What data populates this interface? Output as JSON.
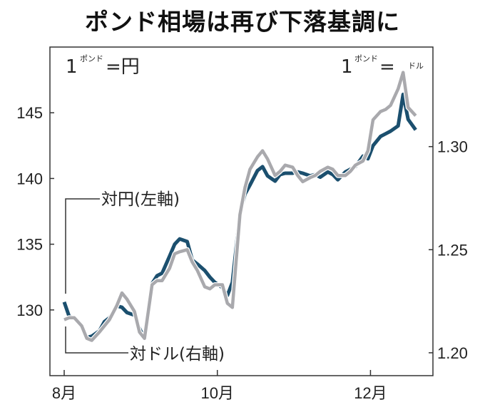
{
  "chart_data": {
    "type": "line",
    "title": "ポンド相場は再び下落基調に",
    "left_axis": {
      "unit_prefix": "1",
      "unit_small": "ポンド",
      "unit_suffix": "=円",
      "ylim": [
        125,
        150
      ],
      "ticks": [
        "130",
        "135",
        "140",
        "145"
      ]
    },
    "right_axis": {
      "unit_prefix": "1",
      "unit_small": "ポンド",
      "unit_suffix": "=",
      "unit_small2": "ドル",
      "ylim": [
        1.1889,
        1.3483
      ],
      "ticks": [
        "1.20",
        "1.25",
        "1.30"
      ]
    },
    "x_ticks": [
      {
        "date": "08-01",
        "label": "8月"
      },
      {
        "date": "10-01",
        "label": "10月"
      },
      {
        "date": "12-01",
        "label": "12月"
      }
    ],
    "grid": false,
    "colors": {
      "yen": "#1b4f6e",
      "dollar": "#a9a9ad"
    },
    "x": [
      "08-01",
      "08-03",
      "08-05",
      "08-08",
      "08-10",
      "08-12",
      "08-15",
      "08-17",
      "08-19",
      "08-22",
      "08-24",
      "08-26",
      "08-29",
      "08-31",
      "09-02",
      "09-05",
      "09-07",
      "09-09",
      "09-12",
      "09-14",
      "09-16",
      "09-19",
      "09-21",
      "09-23",
      "09-26",
      "09-28",
      "09-30",
      "10-03",
      "10-05",
      "10-07",
      "10-10",
      "10-12",
      "10-14",
      "10-17",
      "10-19",
      "10-21",
      "10-24",
      "10-26",
      "10-28",
      "10-31",
      "11-02",
      "11-04",
      "11-07",
      "11-09",
      "11-11",
      "11-14",
      "11-16",
      "11-18",
      "11-21",
      "11-23",
      "11-25",
      "11-28",
      "11-30",
      "12-02",
      "12-05",
      "12-07",
      "12-09",
      "12-12",
      "12-14",
      "12-16",
      "12-19"
    ],
    "series": [
      {
        "name": "対円(左軸)",
        "axis": "left",
        "values": [
          130.6,
          129.5,
          129.4,
          128.8,
          127.9,
          128.0,
          128.4,
          129.1,
          129.4,
          130.3,
          130.2,
          129.8,
          129.6,
          128.6,
          127.8,
          132.0,
          132.6,
          132.8,
          134.1,
          135.0,
          135.4,
          135.2,
          133.8,
          133.5,
          133.0,
          132.5,
          132.1,
          131.7,
          131.1,
          132.1,
          137.3,
          138.8,
          139.5,
          140.6,
          140.9,
          140.2,
          139.8,
          140.3,
          140.4,
          140.4,
          140.5,
          140.4,
          140.2,
          140.3,
          140.1,
          140.5,
          140.3,
          139.9,
          140.5,
          140.7,
          140.9,
          141.7,
          141.5,
          142.5,
          143.2,
          143.4,
          143.6,
          144.0,
          146.4,
          144.5,
          143.7
        ]
      },
      {
        "name": "対ドル(右軸)",
        "axis": "right",
        "values": [
          1.216,
          1.217,
          1.217,
          1.213,
          1.207,
          1.206,
          1.21,
          1.213,
          1.216,
          1.223,
          1.229,
          1.226,
          1.22,
          1.21,
          1.207,
          1.233,
          1.235,
          1.235,
          1.241,
          1.248,
          1.249,
          1.25,
          1.244,
          1.24,
          1.232,
          1.231,
          1.233,
          1.233,
          1.224,
          1.222,
          1.267,
          1.28,
          1.289,
          1.295,
          1.298,
          1.294,
          1.286,
          1.288,
          1.291,
          1.29,
          1.286,
          1.283,
          1.285,
          1.286,
          1.288,
          1.29,
          1.289,
          1.286,
          1.286,
          1.288,
          1.291,
          1.293,
          1.298,
          1.313,
          1.317,
          1.318,
          1.32,
          1.328,
          1.336,
          1.319,
          1.315
        ]
      }
    ]
  }
}
